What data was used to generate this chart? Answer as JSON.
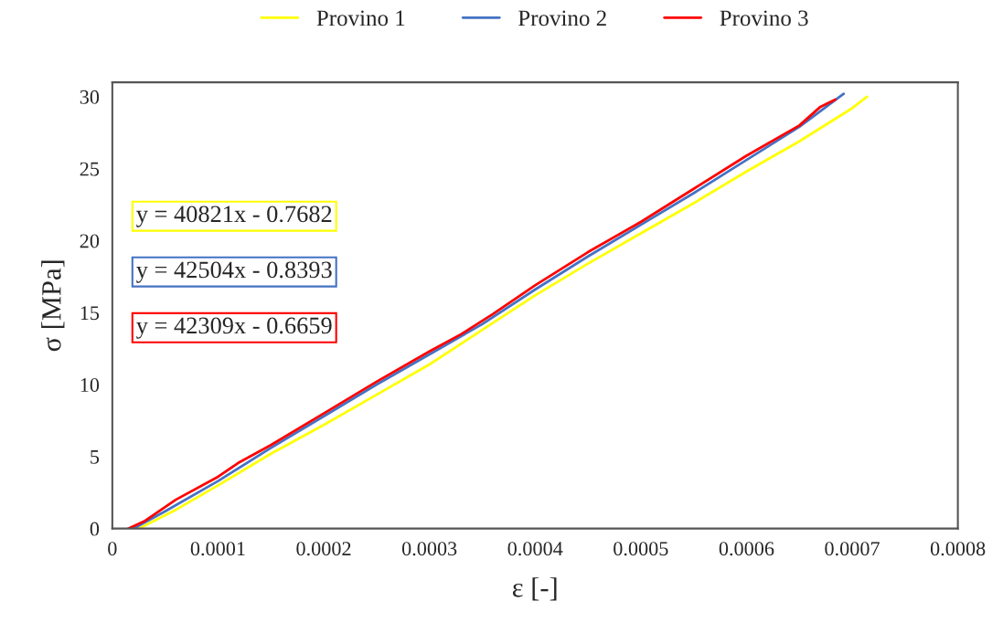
{
  "chart_data": {
    "type": "line",
    "xlabel": "ε [-]",
    "ylabel": "σ [MPa]",
    "xlim": [
      0,
      0.0008
    ],
    "xticks": [
      {
        "value": 0,
        "label": "0"
      },
      {
        "value": 0.0001,
        "label": "0.0001"
      },
      {
        "value": 0.0002,
        "label": "0.0002"
      },
      {
        "value": 0.0003,
        "label": "0.0003"
      },
      {
        "value": 0.0004,
        "label": "0.0004"
      },
      {
        "value": 0.0005,
        "label": "0.0005"
      },
      {
        "value": 0.0006,
        "label": "0.0006"
      },
      {
        "value": 0.0007,
        "label": "0.0007"
      },
      {
        "value": 0.0008,
        "label": "0.0008"
      }
    ],
    "ylim": [
      0,
      31
    ],
    "yticks": [
      0,
      5,
      10,
      15,
      20,
      25,
      30
    ],
    "grid": false,
    "legend": "top",
    "marker": "none",
    "line_style": "solid",
    "series": [
      {
        "name": "Provino 1",
        "color": "#ffff00",
        "x": [
          2.5e-05,
          6e-05,
          0.0001,
          0.00015,
          0.0002,
          0.00025,
          0.0003,
          0.00035,
          0.0004,
          0.00045,
          0.0005,
          0.00055,
          0.0006,
          0.00065,
          0.0007,
          0.000714
        ],
        "values": [
          0,
          1.3,
          3.0,
          5.2,
          7.2,
          9.3,
          11.4,
          13.8,
          16.2,
          18.4,
          20.5,
          22.6,
          24.8,
          26.9,
          29.2,
          30.0
        ]
      },
      {
        "name": "Provino 2",
        "color": "#4472c4",
        "x": [
          2e-05,
          5e-05,
          0.0001,
          0.00015,
          0.0002,
          0.00025,
          0.0003,
          0.00035,
          0.0004,
          0.00045,
          0.0005,
          0.00055,
          0.0006,
          0.00065,
          0.000692
        ],
        "values": [
          0,
          1.2,
          3.3,
          5.6,
          7.8,
          10.0,
          12.1,
          14.2,
          16.6,
          18.9,
          21.1,
          23.3,
          25.6,
          27.9,
          30.2
        ]
      },
      {
        "name": "Provino 3",
        "color": "#ff0000",
        "x": [
          1.5e-05,
          3e-05,
          6e-05,
          0.0001,
          0.00012,
          0.00015,
          0.0002,
          0.00025,
          0.0003,
          0.00033,
          0.00036,
          0.0004,
          0.00045,
          0.0005,
          0.00055,
          0.0006,
          0.00065,
          0.00067,
          0.000684
        ],
        "values": [
          0,
          0.5,
          2.0,
          3.6,
          4.6,
          5.8,
          8.0,
          10.2,
          12.3,
          13.5,
          14.9,
          16.9,
          19.2,
          21.3,
          23.6,
          25.9,
          28.0,
          29.3,
          29.8
        ]
      }
    ],
    "annotations": [
      "y = 40821x - 0.7682",
      "y = 42504x - 0.8393",
      "y = 42309x - 0.6659"
    ]
  }
}
